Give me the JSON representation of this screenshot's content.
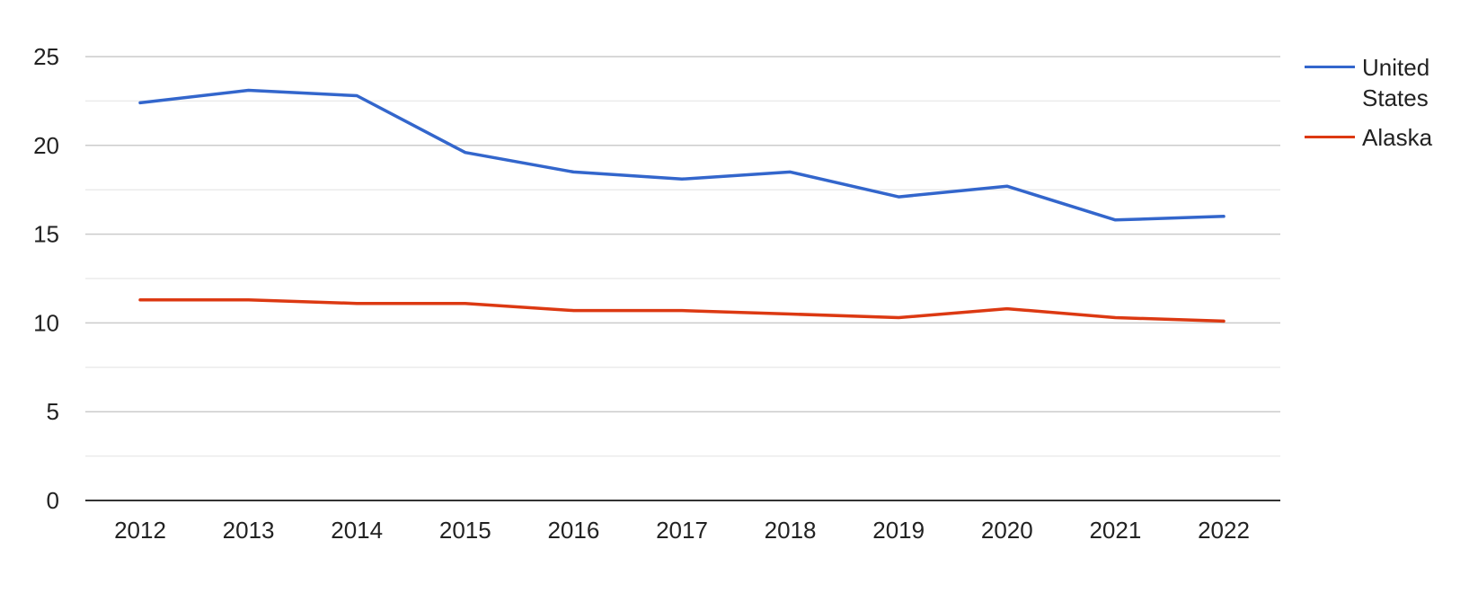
{
  "chart_data": {
    "type": "line",
    "x": [
      "2012",
      "2013",
      "2014",
      "2015",
      "2016",
      "2017",
      "2018",
      "2019",
      "2020",
      "2021",
      "2022"
    ],
    "series": [
      {
        "name": "United States",
        "color": "#3366cc",
        "values": [
          22.4,
          23.1,
          22.8,
          19.6,
          18.5,
          18.1,
          18.5,
          17.1,
          17.7,
          15.8,
          16.0
        ]
      },
      {
        "name": "Alaska",
        "color": "#dc3912",
        "values": [
          11.3,
          11.3,
          11.1,
          11.1,
          10.7,
          10.7,
          10.5,
          10.3,
          10.8,
          10.3,
          10.1
        ]
      }
    ],
    "title": "",
    "xlabel": "",
    "ylabel": "",
    "ylim": [
      0,
      25
    ],
    "yticks": [
      "0",
      "5",
      "10",
      "15",
      "20",
      "25"
    ],
    "grid": true,
    "legend_position": "right"
  }
}
